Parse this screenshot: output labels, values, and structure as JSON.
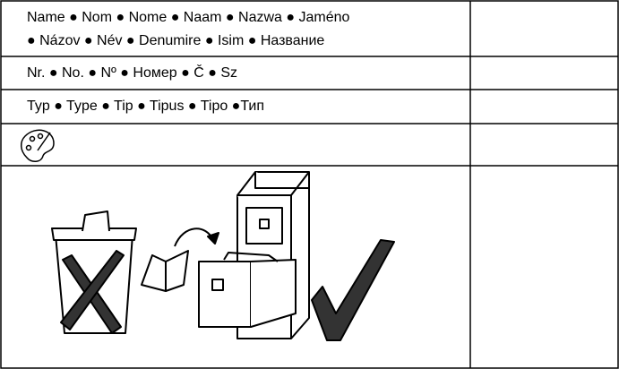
{
  "table": {
    "rows": [
      [
        "Name ● Nom ● Nome ● Naam ● Nazwa ● Jaméno",
        "● Názov ● Név ● Denumire ● Isim ● Название"
      ],
      [
        "Nr. ● No. ● Nº ● Номер ● Č ● Sz"
      ],
      [
        "Typ ● Type ● Tip ● Tipus ● Tipo ●Тип"
      ]
    ]
  }
}
